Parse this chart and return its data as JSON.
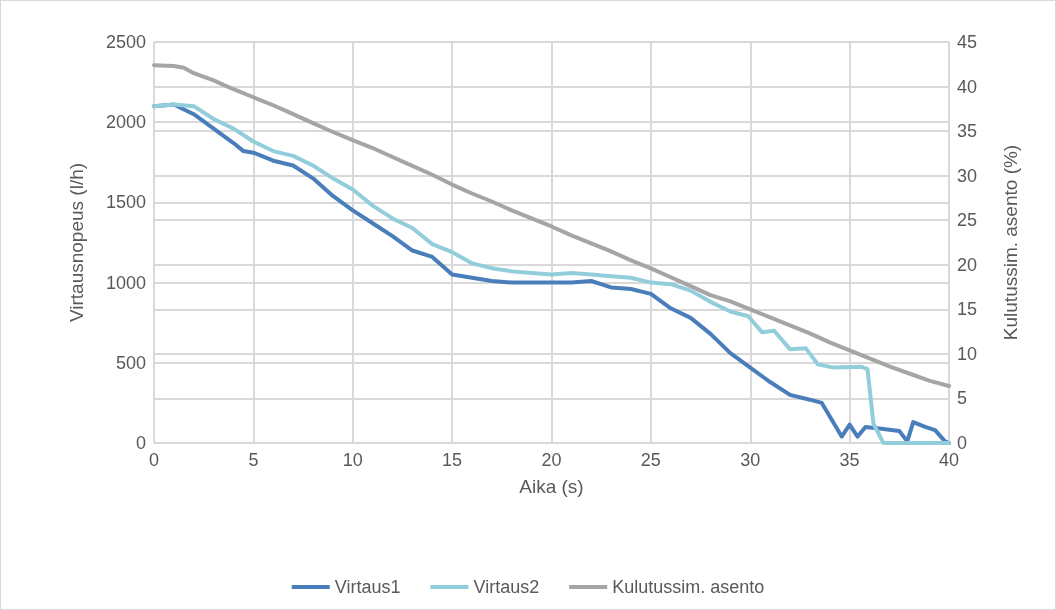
{
  "chart_data": {
    "type": "line",
    "xlabel": "Aika (s)",
    "ylabel": "Virtausnopeus (l/h)",
    "y2label": "Kulutussim. asento (%)",
    "xlim": [
      0,
      40
    ],
    "xticks": [
      0,
      5,
      10,
      15,
      20,
      25,
      30,
      35,
      40
    ],
    "ylim": [
      0,
      2500
    ],
    "yticks": [
      0,
      500,
      1000,
      1500,
      2000,
      2500
    ],
    "y2lim": [
      0,
      45
    ],
    "y2ticks": [
      0,
      5,
      10,
      15,
      20,
      25,
      30,
      35,
      40,
      45
    ],
    "grid": true,
    "legend": "bottom",
    "marker": "none",
    "line_style": "solid",
    "series": [
      {
        "name": "Virtaus1",
        "color": "#4a7ebb",
        "x": [
          0,
          1,
          2,
          3,
          4,
          4.5,
          5,
          6,
          7,
          8,
          9,
          10,
          11,
          12,
          13,
          14,
          15,
          16,
          17,
          18,
          19,
          20,
          21,
          22,
          23,
          24,
          25,
          26,
          27,
          28,
          29,
          30,
          31,
          32,
          33,
          33.6,
          34.6,
          35,
          35.4,
          35.8,
          36.5,
          37.5,
          37.9,
          38.2,
          38.8,
          39.3,
          39.8,
          40
        ],
        "values": [
          2100,
          2110,
          2050,
          1960,
          1870,
          1820,
          1810,
          1760,
          1730,
          1650,
          1540,
          1450,
          1370,
          1290,
          1200,
          1160,
          1050,
          1030,
          1010,
          1000,
          1000,
          1000,
          1000,
          1010,
          970,
          960,
          930,
          840,
          780,
          680,
          560,
          470,
          380,
          300,
          270,
          250,
          40,
          115,
          40,
          100,
          90,
          75,
          10,
          130,
          100,
          80,
          10,
          0
        ]
      },
      {
        "name": "Virtaus2",
        "color": "#92cddc",
        "x": [
          0,
          1,
          2,
          3,
          4,
          5,
          6,
          7,
          8,
          9,
          10,
          11,
          12,
          13,
          14,
          15,
          16,
          17,
          18,
          19,
          20,
          21,
          22,
          23,
          24,
          25,
          26,
          27,
          28,
          29,
          29.9,
          30.6,
          31.2,
          32,
          32.8,
          33.4,
          34.2,
          35.6,
          35.9,
          36.2,
          36.7,
          40
        ],
        "values": [
          2100,
          2110,
          2100,
          2020,
          1960,
          1880,
          1820,
          1790,
          1730,
          1650,
          1580,
          1480,
          1400,
          1340,
          1240,
          1190,
          1120,
          1090,
          1070,
          1060,
          1050,
          1060,
          1050,
          1040,
          1030,
          1000,
          990,
          950,
          880,
          820,
          790,
          690,
          700,
          585,
          590,
          490,
          470,
          475,
          460,
          120,
          0,
          0
        ]
      },
      {
        "name": "Kulutussim. asento",
        "color": "#a5a5a5",
        "axis": "y2",
        "x": [
          0,
          1,
          1.5,
          2,
          3,
          4,
          5,
          6,
          7,
          8,
          9,
          10,
          11,
          12,
          13,
          14,
          15,
          16,
          17,
          18,
          19,
          20,
          21,
          22,
          23,
          24,
          25,
          26,
          27,
          28,
          29,
          30,
          31,
          32,
          33,
          34,
          35,
          36,
          37,
          38,
          39,
          40
        ],
        "values": [
          42.4,
          42.3,
          42.1,
          41.5,
          40.7,
          39.7,
          38.8,
          37.9,
          36.9,
          35.9,
          34.9,
          34.0,
          33.1,
          32.1,
          31.1,
          30.1,
          29.0,
          28.0,
          27.1,
          26.1,
          25.2,
          24.3,
          23.3,
          22.4,
          21.5,
          20.5,
          19.6,
          18.6,
          17.6,
          16.6,
          15.9,
          15.0,
          14.1,
          13.2,
          12.3,
          11.3,
          10.4,
          9.5,
          8.6,
          7.8,
          7.0,
          6.4
        ]
      }
    ]
  }
}
